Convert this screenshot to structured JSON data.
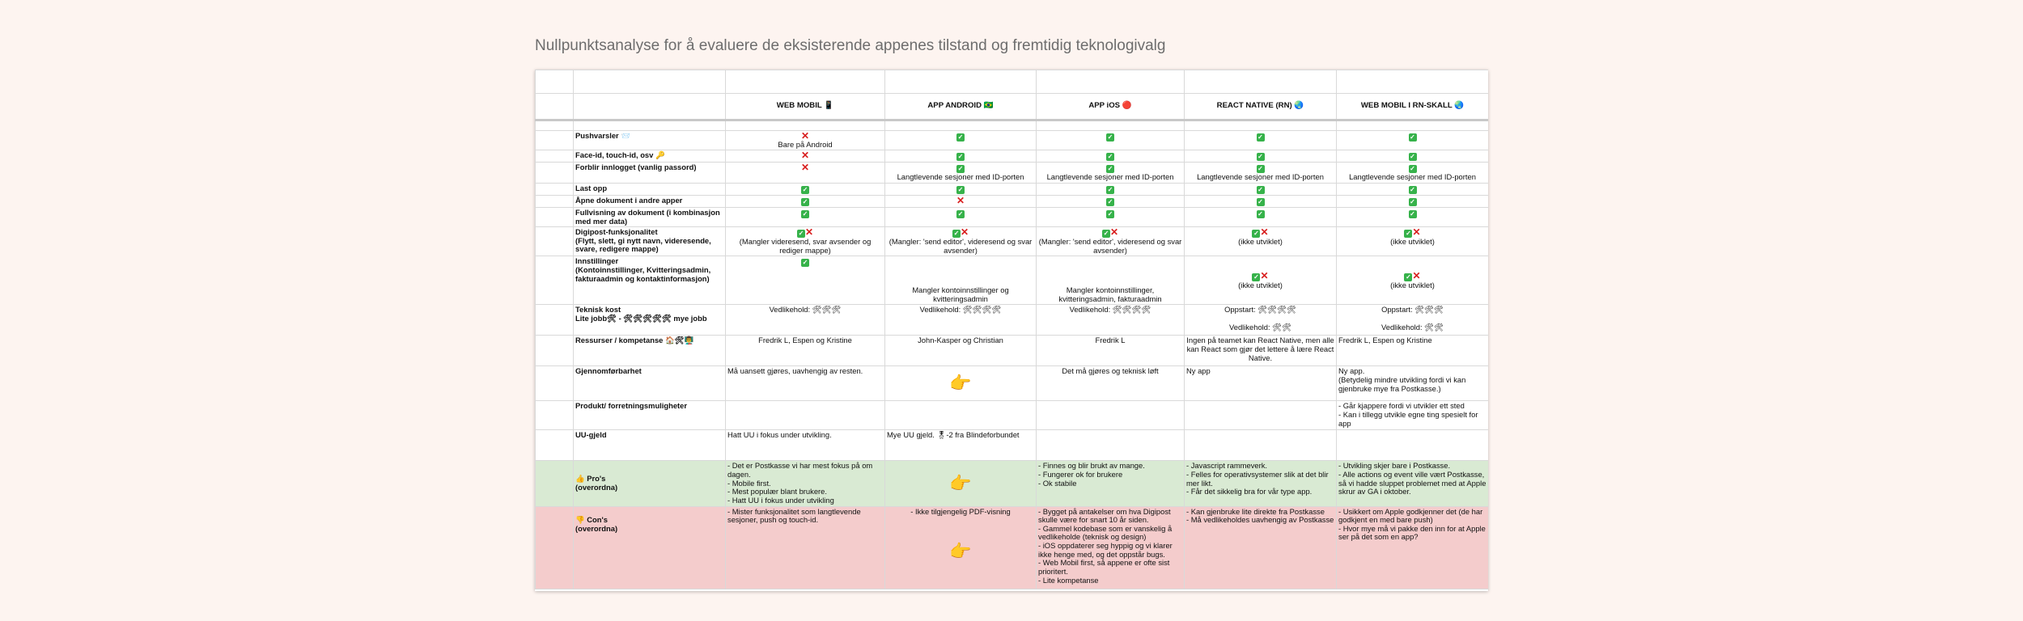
{
  "title": "Nullpunktsanalyse for å evaluere de eksisterende appenes tilstand og fremtidig teknologivalg",
  "columns": [
    "WEB MOBIL 📱",
    "APP ANDROID 🇧🇷",
    "APP iOS 🔴",
    "REACT NATIVE (RN) 🌏",
    "WEB MOBIL I RN-SKALL 🌏"
  ],
  "ok_glyph": "✓",
  "no_glyph": "✕",
  "hand_glyph": "👉",
  "rows": {
    "push": {
      "label": "Pushvarsler 📨",
      "web_note": "Bare på Android"
    },
    "face": {
      "label": "Face-id, touch-id, osv 🔑"
    },
    "login": {
      "label": "Forblir innlogget (vanlig passord)",
      "note": "Langtlevende sesjoner med ID-porten"
    },
    "upload": {
      "label": "Last opp"
    },
    "open": {
      "label": "Åpne dokument i andre apper"
    },
    "full": {
      "label": "Fullvisning av dokument (i kombinasjon med mer data)"
    },
    "digipost": {
      "label": "Digipost-funksjonalitet",
      "label2": "(Flytt, slett, gi nytt navn, videresende, svare, redigere mappe)",
      "web": "(Mangler videresend, svar avsender og rediger mappe)",
      "android": "(Mangler: 'send editor', videresend og svar avsender)",
      "ios": "(Mangler: 'send editor', videresend og svar avsender)",
      "rn": "(ikke utviklet)",
      "shell": "(ikke utviklet)"
    },
    "settings": {
      "label": "Innstillinger",
      "label2": "(Kontoinnstillinger, Kvitteringsadmin, fakturaadmin og kontaktinformasjon)",
      "android": "Mangler kontoinnstillinger og kvitteringsadmin",
      "ios": "Mangler kontoinnstillinger, kvitteringsadmin, fakturaadmin",
      "rn": "(ikke utviklet)",
      "shell": "(ikke utviklet)"
    },
    "cost": {
      "label": "Teknisk kost",
      "label2": "Lite jobb🛠 - 🛠🛠🛠🛠🛠 mye jobb",
      "web": "Vedlikehold: 🛠🛠🛠",
      "android": "Vedlikehold: 🛠🛠🛠🛠",
      "ios": "Vedlikehold: 🛠🛠🛠🛠",
      "rn1": "Oppstart: 🛠🛠🛠🛠",
      "rn2": "Vedlikehold: 🛠🛠",
      "shell1": "Oppstart: 🛠🛠🛠",
      "shell2": "Vedlikehold: 🛠🛠"
    },
    "res": {
      "label": "Ressurser / kompetanse 🏠🛠👨‍🏫",
      "web": "Fredrik L, Espen og Kristine",
      "android": "John-Kasper og Christian",
      "ios": "Fredrik L",
      "rn": "Ingen på teamet kan React Native, men alle kan React som gjør det lettere å lære React Native.",
      "shell": "Fredrik L, Espen og Kristine"
    },
    "gjen": {
      "label": "Gjennomførbarhet",
      "web": "Må uansett gjøres, uavhengig av resten.",
      "ios": "Det må gjøres og teknisk løft",
      "rn": "Ny app",
      "shell": "Ny app.\n(Betydelig mindre utvikling fordi vi kan gjenbruke mye fra Postkasse.)"
    },
    "prod": {
      "label": "Produkt/ forretningsmuligheter",
      "shell": "- Går kjappere fordi vi utvikler ett sted\n- Kan i tillegg utvikle egne ting spesielt for app"
    },
    "uu": {
      "label": "UU-gjeld",
      "web": "Hatt UU i fokus under utvikling.",
      "android": "Mye UU gjeld. 🎖-2 fra Blindeforbundet"
    },
    "pros": {
      "label": "👍 Pro's",
      "label2": "(overordna)",
      "web": "- Det er Postkasse vi har mest fokus på om dagen.\n- Mobile first.\n- Mest populær blant brukere.\n- Hatt UU i fokus under utvikling",
      "ios": "- Finnes og blir brukt av mange.\n- Fungerer ok for brukere\n- Ok stabile",
      "rn": "- Javascript rammeverk.\n- Felles for operativsystemer slik at det blir mer likt.\n- Får det sikkelig bra for vår type app.",
      "shell": "- Utvikling skjer bare i Postkasse.\n- Alle actions og event ville vært Postkasse, så vi hadde sluppet problemet med at Apple skrur av GA i oktober."
    },
    "cons": {
      "label": "👎 Con's",
      "label2": "(overordna)",
      "web": "- Mister funksjonalitet som langtlevende sesjoner, push og touch-id.",
      "android": "- Ikke tilgjengelig PDF-visning",
      "ios": "- Bygget på antakelser om hva Digipost skulle være for snart 10 år siden.\n- Gammel kodebase som er vanskelig å vedlikeholde (teknisk og design)\n- iOS oppdaterer seg hyppig og vi klarer ikke henge med, og det oppstår bugs.\n- Web Mobil first, så appene er ofte sist prioritert.\n- Lite kompetanse",
      "rn": "- Kan gjenbruke lite direkte fra Postkasse\n- Må vedlikeholdes uavhengig av Postkasse",
      "shell": "- Usikkert om Apple godkjenner det (de har godkjent en med bare push)\n- Hvor mye må vi pakke den inn for at Apple ser på det som en app?"
    }
  }
}
